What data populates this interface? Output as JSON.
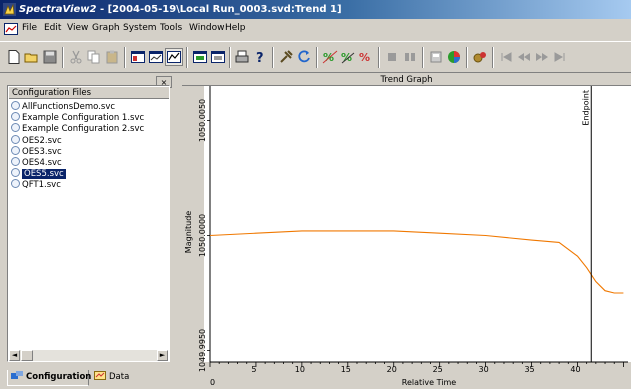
{
  "window": {
    "app_name": "SpectraView2",
    "title_rest": " - [2004-05-19\\Local Run_0003.svd:Trend 1]"
  },
  "menu": [
    "File",
    "Edit",
    "View",
    "Graph",
    "System",
    "Tools",
    "Window",
    "Help"
  ],
  "toolbar_icons": [
    "new-icon",
    "open-icon",
    "save-icon",
    "cut-icon",
    "copy-icon",
    "paste-icon",
    "view1-icon",
    "view2-icon",
    "view3-icon",
    "view4-icon",
    "view5-icon",
    "print-icon",
    "help-icon",
    "tools-icon",
    "refresh-icon",
    "calc1-icon",
    "calc2-icon",
    "calc3-icon",
    "stop1-icon",
    "stop2-icon",
    "export-icon",
    "color-icon",
    "settings-icon",
    "first-icon",
    "prev-icon",
    "next-icon",
    "last-icon"
  ],
  "sidebar": {
    "header": "Configuration Files",
    "close_glyph": "×",
    "items": [
      {
        "label": "AllFunctionsDemo.svc",
        "selected": false
      },
      {
        "label": "Example Configuration 1.svc",
        "selected": false
      },
      {
        "label": "Example Configuration 2.svc",
        "selected": false
      },
      {
        "label": "OES2.svc",
        "selected": false
      },
      {
        "label": "OES3.svc",
        "selected": false
      },
      {
        "label": "OES4.svc",
        "selected": false
      },
      {
        "label": "OES5.svc",
        "selected": true
      },
      {
        "label": "QFT1.svc",
        "selected": false
      }
    ],
    "tabs": [
      {
        "label": "Configuration",
        "active": true
      },
      {
        "label": "Data",
        "active": false
      }
    ],
    "scroll_left": "◄",
    "scroll_right": "►"
  },
  "graph": {
    "title": "Trend Graph",
    "y_label": "Magnitude",
    "x_label": "Relative Time",
    "y_ticks": [
      "1050.0050",
      "1050.0000",
      "1049.9950"
    ],
    "x_ticks": [
      "0",
      "5",
      "10",
      "15",
      "20",
      "25",
      "30",
      "35",
      "40"
    ],
    "endpoint_label": "Endpoint",
    "colors": {
      "trend": "#f07800",
      "endpoint": "#000000"
    }
  },
  "chart_data": {
    "type": "line",
    "title": "Trend Graph",
    "xlabel": "Relative Time",
    "ylabel": "Magnitude",
    "xlim": [
      0,
      45.5
    ],
    "ylim": [
      1049.9945,
      1050.0065
    ],
    "x_ticks": [
      0,
      5,
      10,
      15,
      20,
      25,
      30,
      35,
      40
    ],
    "y_ticks": [
      1049.995,
      1050.0,
      1050.005
    ],
    "endpoint_x": 41.5,
    "series": [
      {
        "x": [
          0,
          5,
          10,
          15,
          20,
          25,
          30,
          35,
          38,
          40,
          41,
          42,
          43,
          44,
          45
        ],
        "y": [
          1050.0,
          1050.0001,
          1050.0002,
          1050.0002,
          1050.0002,
          1050.0001,
          1050.0,
          1049.9998,
          1049.9997,
          1049.9991,
          1049.9986,
          1049.998,
          1049.9976,
          1049.9975,
          1049.9975
        ]
      }
    ]
  }
}
